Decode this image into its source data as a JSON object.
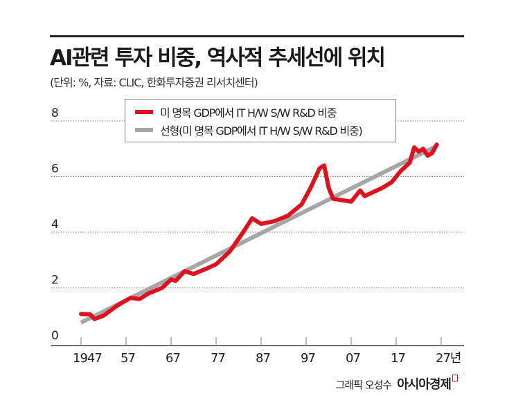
{
  "header": {
    "title": "AI관련 투자 비중, 역사적 추세선에 위치",
    "subtitle": "(단위: %, 자료: CLIC, 한화투자증권 리서치센터)"
  },
  "footer": {
    "credit": "그래픽 오성수",
    "brand": "아시아경제"
  },
  "colors": {
    "actual": "#e0101c",
    "trend": "#a6a6a6"
  },
  "chart_data": {
    "type": "line",
    "title": "AI관련 투자 비중, 역사적 추세선에 위치",
    "xlabel": "",
    "ylabel": "%",
    "xlim": [
      1944,
      2035
    ],
    "ylim": [
      0,
      8
    ],
    "y_ticks": [
      {
        "v": 0,
        "label": "0"
      },
      {
        "v": 2,
        "label": "2"
      },
      {
        "v": 4,
        "label": "4"
      },
      {
        "v": 6,
        "label": "6"
      },
      {
        "v": 8,
        "label": "8"
      }
    ],
    "x_ticks": [
      {
        "v": 1947,
        "label": "1947"
      },
      {
        "v": 1957,
        "label": "57"
      },
      {
        "v": 1967,
        "label": "67"
      },
      {
        "v": 1977,
        "label": "77"
      },
      {
        "v": 1987,
        "label": "87"
      },
      {
        "v": 1997,
        "label": "97"
      },
      {
        "v": 2007,
        "label": "07"
      },
      {
        "v": 2017,
        "label": "17"
      },
      {
        "v": 2027,
        "label": "27년"
      }
    ],
    "grid": true,
    "legend_position": "top-center",
    "series": [
      {
        "name": "미 명목 GDP에서 IT H/W S/W R&D 비중",
        "color": "#e0101c",
        "x": [
          1947,
          1949,
          1950,
          1952,
          1955,
          1958,
          1960,
          1962,
          1965,
          1967,
          1968,
          1970,
          1972,
          1975,
          1977,
          1980,
          1983,
          1985,
          1987,
          1990,
          1993,
          1996,
          1998,
          2000,
          2001,
          2002,
          2003,
          2005,
          2007,
          2009,
          2010,
          2012,
          2014,
          2016,
          2018,
          2020,
          2021,
          2022,
          2023,
          2024,
          2025,
          2026
        ],
        "y": [
          1.06,
          1.05,
          0.88,
          1.0,
          1.36,
          1.64,
          1.6,
          1.8,
          2.0,
          2.3,
          2.25,
          2.6,
          2.5,
          2.7,
          2.85,
          3.3,
          4.0,
          4.5,
          4.3,
          4.4,
          4.6,
          5.0,
          5.6,
          6.3,
          6.4,
          5.6,
          5.2,
          5.15,
          5.1,
          5.5,
          5.3,
          5.45,
          5.6,
          5.8,
          6.2,
          6.5,
          7.05,
          6.9,
          7.0,
          6.75,
          6.85,
          7.15
        ]
      },
      {
        "name": "선형(미 명목 GDP에서 IT H/W S/W R&D 비중)",
        "color": "#a6a6a6",
        "x": [
          1947,
          2026
        ],
        "y": [
          0.75,
          7.1
        ]
      }
    ]
  }
}
